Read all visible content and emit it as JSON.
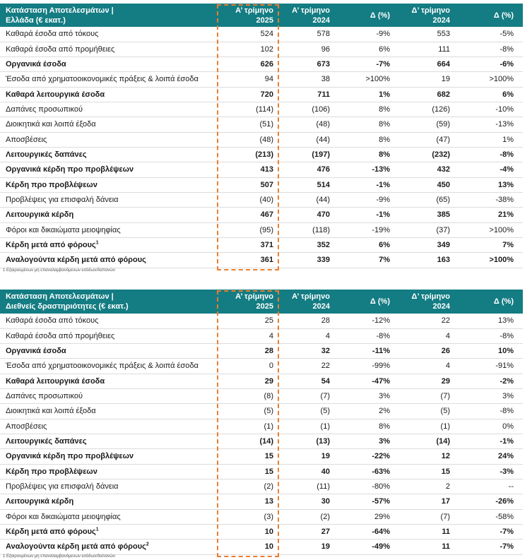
{
  "tables": [
    {
      "header": {
        "title": [
          "Κατάσταση Αποτελεσμάτων |",
          "Ελλάδα (€ εκατ.)"
        ],
        "columns": [
          [
            "Α’ τρίμηνο",
            "2025"
          ],
          [
            "Α’ τρίμηνο",
            "2024"
          ],
          [
            "Δ (%)"
          ],
          [
            "Δ’ τρίμηνο",
            "2024"
          ],
          [
            "Δ (%)"
          ]
        ]
      },
      "rows": [
        {
          "label": "Καθαρά έσοδα από τόκους",
          "cells": [
            "524",
            "578",
            "-9%",
            "553",
            "-5%"
          ]
        },
        {
          "label": "Καθαρά έσοδα από προμήθειες",
          "cells": [
            "102",
            "96",
            "6%",
            "111",
            "-8%"
          ]
        },
        {
          "label": "Οργανικά έσοδα",
          "bold": true,
          "cells": [
            "626",
            "673",
            "-7%",
            "664",
            "-6%"
          ]
        },
        {
          "label": "Έσοδα από χρηματοοικονομικές πράξεις & λοιπά έσοδα",
          "cells": [
            "94",
            "38",
            ">100%",
            "19",
            ">100%"
          ]
        },
        {
          "label": "Καθαρά λειτουργικά έσοδα",
          "bold": true,
          "cells": [
            "720",
            "711",
            "1%",
            "682",
            "6%"
          ]
        },
        {
          "label": "Δαπάνες προσωπικού",
          "cells": [
            "(114)",
            "(106)",
            "8%",
            "(126)",
            "-10%"
          ]
        },
        {
          "label": "Διοικητικά και λοιπά έξοδα",
          "cells": [
            "(51)",
            "(48)",
            "8%",
            "(59)",
            "-13%"
          ]
        },
        {
          "label": "Αποσβέσεις",
          "cells": [
            "(48)",
            "(44)",
            "8%",
            "(47)",
            "1%"
          ]
        },
        {
          "label": "Λειτουργικές δαπάνες",
          "bold": true,
          "cells": [
            "(213)",
            "(197)",
            "8%",
            "(232)",
            "-8%"
          ]
        },
        {
          "label": "Οργανικά κέρδη προ προβλέψεων",
          "bold": true,
          "cells": [
            "413",
            "476",
            "-13%",
            "432",
            "-4%"
          ]
        },
        {
          "label": "Κέρδη προ προβλέψεων",
          "bold": true,
          "cells": [
            "507",
            "514",
            "-1%",
            "450",
            "13%"
          ]
        },
        {
          "label": "Προβλέψεις για επισφαλή δάνεια",
          "cells": [
            "(40)",
            "(44)",
            "-9%",
            "(65)",
            "-38%"
          ]
        },
        {
          "label": "Λειτουργικά κέρδη",
          "bold": true,
          "cells": [
            "467",
            "470",
            "-1%",
            "385",
            "21%"
          ]
        },
        {
          "label": "Φόροι και δικαιώματα μειοψηφίας",
          "cells": [
            "(95)",
            "(118)",
            "-19%",
            "(37)",
            ">100%"
          ]
        },
        {
          "label": "Κέρδη μετά από φόρους",
          "sup": "1",
          "bold": true,
          "cells": [
            "371",
            "352",
            "6%",
            "349",
            "7%"
          ]
        },
        {
          "label": "Αναλογούντα κέρδη μετά από φόρους",
          "bold": true,
          "cells": [
            "361",
            "339",
            "7%",
            "163",
            ">100%"
          ]
        }
      ],
      "footnote": "1 Εξαιρουμένων μη επαναλαμβανόμενων εσόδων/δαπανών"
    },
    {
      "header": {
        "title": [
          "Κατάσταση Αποτελεσμάτων |",
          "Διεθνείς δραστηριότητες (€ εκατ.)"
        ],
        "columns": [
          [
            "Α’ τρίμηνο",
            "2025"
          ],
          [
            "Α’ τρίμηνο",
            "2024"
          ],
          [
            "Δ (%)"
          ],
          [
            "Δ’ τρίμηνο",
            "2024"
          ],
          [
            "Δ (%)"
          ]
        ]
      },
      "rows": [
        {
          "label": "Καθαρά έσοδα από τόκους",
          "cells": [
            "25",
            "28",
            "-12%",
            "22",
            "13%"
          ]
        },
        {
          "label": "Καθαρά έσοδα από προμήθειες",
          "cells": [
            "4",
            "4",
            "-8%",
            "4",
            "-8%"
          ]
        },
        {
          "label": "Οργανικά έσοδα",
          "bold": true,
          "cells": [
            "28",
            "32",
            "-11%",
            "26",
            "10%"
          ]
        },
        {
          "label": "Έσοδα από χρηματοοικονομικές πράξεις & λοιπά έσοδα",
          "cells": [
            "0",
            "22",
            "-99%",
            "4",
            "-91%"
          ]
        },
        {
          "label": "Καθαρά λειτουργικά έσοδα",
          "bold": true,
          "cells": [
            "29",
            "54",
            "-47%",
            "29",
            "-2%"
          ]
        },
        {
          "label": "Δαπάνες προσωπικού",
          "cells": [
            "(8)",
            "(7)",
            "3%",
            "(7)",
            "3%"
          ]
        },
        {
          "label": "Διοικητικά και λοιπά έξοδα",
          "cells": [
            "(5)",
            "(5)",
            "2%",
            "(5)",
            "-8%"
          ]
        },
        {
          "label": "Αποσβέσεις",
          "cells": [
            "(1)",
            "(1)",
            "8%",
            "(1)",
            "0%"
          ]
        },
        {
          "label": "Λειτουργικές δαπάνες",
          "bold": true,
          "cells": [
            "(14)",
            "(13)",
            "3%",
            "(14)",
            "-1%"
          ]
        },
        {
          "label": "Οργανικά κέρδη προ προβλέψεων",
          "bold": true,
          "cells": [
            "15",
            "19",
            "-22%",
            "12",
            "24%"
          ]
        },
        {
          "label": "Κέρδη προ προβλέψεων",
          "bold": true,
          "cells": [
            "15",
            "40",
            "-63%",
            "15",
            "-3%"
          ]
        },
        {
          "label": "Προβλέψεις για επισφαλή δάνεια",
          "cells": [
            "(2)",
            "(11)",
            "-80%",
            "2",
            "--"
          ]
        },
        {
          "label": "Λειτουργικά κέρδη",
          "bold": true,
          "cells": [
            "13",
            "30",
            "-57%",
            "17",
            "-26%"
          ]
        },
        {
          "label": "Φόροι και δικαιώματα μειοψηφίας",
          "cells": [
            "(3)",
            "(2)",
            "29%",
            "(7)",
            "-58%"
          ]
        },
        {
          "label": "Κέρδη μετά από φόρους",
          "sup": "1",
          "bold": true,
          "cells": [
            "10",
            "27",
            "-64%",
            "11",
            "-7%"
          ]
        },
        {
          "label": "Αναλογούντα κέρδη μετά από φόρους",
          "sup": "2",
          "bold": true,
          "cells": [
            "10",
            "19",
            "-49%",
            "11",
            "-7%"
          ]
        }
      ],
      "footnote": "1 Εξαιρουμένων μη επαναλαμβανόμενων εσόδων/δαπανών"
    }
  ]
}
